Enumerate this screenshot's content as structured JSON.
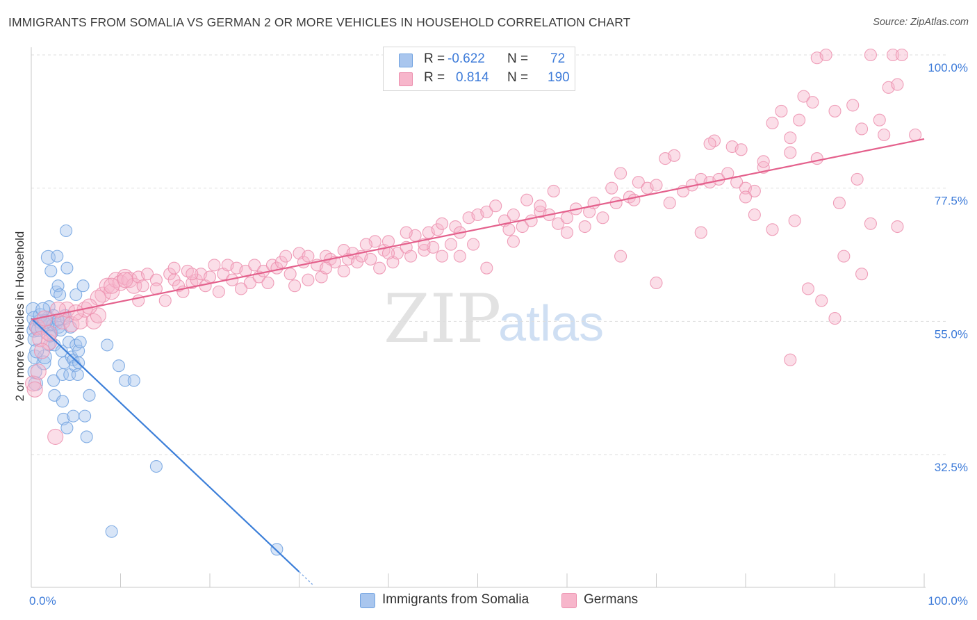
{
  "header": {
    "title": "IMMIGRANTS FROM SOMALIA VS GERMAN 2 OR MORE VEHICLES IN HOUSEHOLD CORRELATION CHART",
    "source": "Source: ZipAtlas.com"
  },
  "watermark": {
    "zip": "ZIP",
    "atlas": "atlas"
  },
  "legend": {
    "r_label": "R =",
    "n_label": "N =",
    "rows": [
      {
        "r": "-0.622",
        "n": "72",
        "color": "#a9c6ee"
      },
      {
        "r": "0.814",
        "n": "190",
        "color": "#f7b6cb"
      }
    ]
  },
  "chart_data": {
    "type": "scatter",
    "title": "IMMIGRANTS FROM SOMALIA VS GERMAN 2 OR MORE VEHICLES IN HOUSEHOLD CORRELATION CHART",
    "xlabel": "",
    "ylabel": "2 or more Vehicles in Household",
    "xlim": [
      0,
      100
    ],
    "ylim": [
      10,
      102
    ],
    "x_tick_labels": [
      "0.0%",
      "100.0%"
    ],
    "y_ticks": [
      32.5,
      55.0,
      77.5,
      100.0
    ],
    "y_tick_labels": [
      "32.5%",
      "55.0%",
      "77.5%",
      "100.0%"
    ],
    "grid": true,
    "legend_position": "bottom",
    "series": [
      {
        "name": "Immigrants from Somalia",
        "color": "#6fa1e0",
        "fill": "#a9c6ee",
        "line_color": "#3c7fd9",
        "trend": {
          "x0": 0,
          "y0": 55.5,
          "x1": 30,
          "y1": 12.7,
          "dash_to_x": 31.5
        },
        "points": [
          [
            0.2,
            57.0
          ],
          [
            0.3,
            55.5
          ],
          [
            0.3,
            53.5
          ],
          [
            0.4,
            52.0
          ],
          [
            0.4,
            49.0
          ],
          [
            0.4,
            46.5
          ],
          [
            0.5,
            44.5
          ],
          [
            0.5,
            54.2
          ],
          [
            0.8,
            53.6
          ],
          [
            1.0,
            55.0
          ],
          [
            1.2,
            54.0
          ],
          [
            1.4,
            48.0
          ],
          [
            1.5,
            49.0
          ],
          [
            1.8,
            54.3
          ],
          [
            1.9,
            55.5
          ],
          [
            1.9,
            65.8
          ],
          [
            2.0,
            57.5
          ],
          [
            2.0,
            51.0
          ],
          [
            2.2,
            63.5
          ],
          [
            2.3,
            53.0
          ],
          [
            2.4,
            54.5
          ],
          [
            2.5,
            45.0
          ],
          [
            2.5,
            56.0
          ],
          [
            2.6,
            51.0
          ],
          [
            2.6,
            42.5
          ],
          [
            2.8,
            60.0
          ],
          [
            2.8,
            54.5
          ],
          [
            2.9,
            66.0
          ],
          [
            3.0,
            61.0
          ],
          [
            3.1,
            54.0
          ],
          [
            3.2,
            59.5
          ],
          [
            3.3,
            53.5
          ],
          [
            3.4,
            50.0
          ],
          [
            3.5,
            41.5
          ],
          [
            3.5,
            46.0
          ],
          [
            3.6,
            38.5
          ],
          [
            3.7,
            48.0
          ],
          [
            3.8,
            56.0
          ],
          [
            3.9,
            70.3
          ],
          [
            3.9,
            55.5
          ],
          [
            4.0,
            64.0
          ],
          [
            4.0,
            37.0
          ],
          [
            4.2,
            51.5
          ],
          [
            4.3,
            46.0
          ],
          [
            4.4,
            54.0
          ],
          [
            4.5,
            49.0
          ],
          [
            4.7,
            39.0
          ],
          [
            4.7,
            48.5
          ],
          [
            4.9,
            47.5
          ],
          [
            5.0,
            59.5
          ],
          [
            5.0,
            51.0
          ],
          [
            5.3,
            50.0
          ],
          [
            5.5,
            51.5
          ],
          [
            5.3,
            48.0
          ],
          [
            5.2,
            46.0
          ],
          [
            5.8,
            61.0
          ],
          [
            6.0,
            39.0
          ],
          [
            6.2,
            35.5
          ],
          [
            6.5,
            42.5
          ],
          [
            8.5,
            51.0
          ],
          [
            9.0,
            19.5
          ],
          [
            9.8,
            47.5
          ],
          [
            10.5,
            45.0
          ],
          [
            11.5,
            45.0
          ],
          [
            14.0,
            30.5
          ],
          [
            27.5,
            16.5
          ],
          [
            1.0,
            56.0
          ],
          [
            1.6,
            55.0
          ],
          [
            2.1,
            52.5
          ],
          [
            3.0,
            55.2
          ],
          [
            0.6,
            50.0
          ],
          [
            1.3,
            57.0
          ]
        ]
      },
      {
        "name": "Germans",
        "color": "#ec8fae",
        "fill": "#f7b6cb",
        "line_color": "#e4608c",
        "trend": {
          "x0": 0,
          "y0": 55.3,
          "x1": 100,
          "y1": 85.8
        },
        "points": [
          [
            0.2,
            44.5
          ],
          [
            0.4,
            43.5
          ],
          [
            0.7,
            54.0
          ],
          [
            1.0,
            52.0
          ],
          [
            1.5,
            55.5
          ],
          [
            2.0,
            51.5
          ],
          [
            2.7,
            35.5
          ],
          [
            3.5,
            55.0
          ],
          [
            4.0,
            57.0
          ],
          [
            4.5,
            54.5
          ],
          [
            5.5,
            55.0
          ],
          [
            6.0,
            57.0
          ],
          [
            7.0,
            55.0
          ],
          [
            7.5,
            56.0
          ],
          [
            8.0,
            59.5
          ],
          [
            8.5,
            61.0
          ],
          [
            9.0,
            60.0
          ],
          [
            9.5,
            62.0
          ],
          [
            10.0,
            61.5
          ],
          [
            10.5,
            62.5
          ],
          [
            11.0,
            62.0
          ],
          [
            11.5,
            61.0
          ],
          [
            12.0,
            62.5
          ],
          [
            12.5,
            61.0
          ],
          [
            13.0,
            63.0
          ],
          [
            14.0,
            62.0
          ],
          [
            15.0,
            58.5
          ],
          [
            15.5,
            63.0
          ],
          [
            16.0,
            62.0
          ],
          [
            16.5,
            61.0
          ],
          [
            17.0,
            60.0
          ],
          [
            17.5,
            63.5
          ],
          [
            18.0,
            61.5
          ],
          [
            18.5,
            62.0
          ],
          [
            19.0,
            63.0
          ],
          [
            19.5,
            61.0
          ],
          [
            20.0,
            62.5
          ],
          [
            21.0,
            60.0
          ],
          [
            21.5,
            63.0
          ],
          [
            22.0,
            64.5
          ],
          [
            22.5,
            62.0
          ],
          [
            23.0,
            64.0
          ],
          [
            24.0,
            63.5
          ],
          [
            24.5,
            61.5
          ],
          [
            25.0,
            64.5
          ],
          [
            25.5,
            62.5
          ],
          [
            26.0,
            63.5
          ],
          [
            27.0,
            64.5
          ],
          [
            27.5,
            64.0
          ],
          [
            28.0,
            65.0
          ],
          [
            29.0,
            63.0
          ],
          [
            29.5,
            61.0
          ],
          [
            30.0,
            66.5
          ],
          [
            30.5,
            65.0
          ],
          [
            31.0,
            66.0
          ],
          [
            32.0,
            64.5
          ],
          [
            32.5,
            62.5
          ],
          [
            33.0,
            66.0
          ],
          [
            33.5,
            65.5
          ],
          [
            34.0,
            65.0
          ],
          [
            35.0,
            67.0
          ],
          [
            35.5,
            65.5
          ],
          [
            36.0,
            66.5
          ],
          [
            36.5,
            65.0
          ],
          [
            37.0,
            66.0
          ],
          [
            38.0,
            65.5
          ],
          [
            38.5,
            68.5
          ],
          [
            39.0,
            64.0
          ],
          [
            39.5,
            67.0
          ],
          [
            40.0,
            68.5
          ],
          [
            40.5,
            65.0
          ],
          [
            41.0,
            66.5
          ],
          [
            42.0,
            67.5
          ],
          [
            42.5,
            66.0
          ],
          [
            43.0,
            69.5
          ],
          [
            44.0,
            67.0
          ],
          [
            44.5,
            70.0
          ],
          [
            45.0,
            67.5
          ],
          [
            45.5,
            70.5
          ],
          [
            46.0,
            66.0
          ],
          [
            47.0,
            68.0
          ],
          [
            47.5,
            71.0
          ],
          [
            48.0,
            70.0
          ],
          [
            49.0,
            72.5
          ],
          [
            49.5,
            68.0
          ],
          [
            50.0,
            73.0
          ],
          [
            51.0,
            73.5
          ],
          [
            52.0,
            74.5
          ],
          [
            53.0,
            72.0
          ],
          [
            53.5,
            70.5
          ],
          [
            54.0,
            73.0
          ],
          [
            55.0,
            71.0
          ],
          [
            55.5,
            75.5
          ],
          [
            56.0,
            72.0
          ],
          [
            57.0,
            73.5
          ],
          [
            58.0,
            73.0
          ],
          [
            58.5,
            77.0
          ],
          [
            59.0,
            71.5
          ],
          [
            60.0,
            72.5
          ],
          [
            61.0,
            74.0
          ],
          [
            62.0,
            71.0
          ],
          [
            62.5,
            73.5
          ],
          [
            63.0,
            75.0
          ],
          [
            64.0,
            72.5
          ],
          [
            65.0,
            77.5
          ],
          [
            65.5,
            75.0
          ],
          [
            66.0,
            80.0
          ],
          [
            67.0,
            76.0
          ],
          [
            67.5,
            75.5
          ],
          [
            68.0,
            78.5
          ],
          [
            69.0,
            77.5
          ],
          [
            70.0,
            78.0
          ],
          [
            71.0,
            82.5
          ],
          [
            71.5,
            75.0
          ],
          [
            72.0,
            83.0
          ],
          [
            73.0,
            77.0
          ],
          [
            74.0,
            78.0
          ],
          [
            75.0,
            79.0
          ],
          [
            76.0,
            78.5
          ],
          [
            76.5,
            85.5
          ],
          [
            77.0,
            79.0
          ],
          [
            78.0,
            80.0
          ],
          [
            78.5,
            84.5
          ],
          [
            79.0,
            78.5
          ],
          [
            80.0,
            77.5
          ],
          [
            81.0,
            77.0
          ],
          [
            82.0,
            81.0
          ],
          [
            83.0,
            88.5
          ],
          [
            84.0,
            90.5
          ],
          [
            85.0,
            86.0
          ],
          [
            86.0,
            89.0
          ],
          [
            86.5,
            93.0
          ],
          [
            87.5,
            92.0
          ],
          [
            88.0,
            99.5
          ],
          [
            89.0,
            100.0
          ],
          [
            90.0,
            90.5
          ],
          [
            92.0,
            91.5
          ],
          [
            93.0,
            87.5
          ],
          [
            94.0,
            100.0
          ],
          [
            95.0,
            89.0
          ],
          [
            96.0,
            94.5
          ],
          [
            96.5,
            100.0
          ],
          [
            97.0,
            95.0
          ],
          [
            97.5,
            100.0
          ],
          [
            99.0,
            86.5
          ],
          [
            92.5,
            79.0
          ],
          [
            90.0,
            55.5
          ],
          [
            85.0,
            48.5
          ],
          [
            93.0,
            63.0
          ],
          [
            91.0,
            66.0
          ],
          [
            88.5,
            58.5
          ],
          [
            87.0,
            60.5
          ],
          [
            83.0,
            70.5
          ],
          [
            81.0,
            73.0
          ],
          [
            85.5,
            72.0
          ],
          [
            90.5,
            75.0
          ],
          [
            94.0,
            71.5
          ],
          [
            97.0,
            71.0
          ],
          [
            80.0,
            76.0
          ],
          [
            75.0,
            70.0
          ],
          [
            70.0,
            61.5
          ],
          [
            66.0,
            66.0
          ],
          [
            60.0,
            70.0
          ],
          [
            57.0,
            74.5
          ],
          [
            54.0,
            68.5
          ],
          [
            51.0,
            64.0
          ],
          [
            48.0,
            66.0
          ],
          [
            46.0,
            71.5
          ],
          [
            44.0,
            68.0
          ],
          [
            42.0,
            70.0
          ],
          [
            40.0,
            66.5
          ],
          [
            37.5,
            68.0
          ],
          [
            35.0,
            63.5
          ],
          [
            33.0,
            64.0
          ],
          [
            31.0,
            62.0
          ],
          [
            28.5,
            66.0
          ],
          [
            26.5,
            61.5
          ],
          [
            23.5,
            60.5
          ],
          [
            20.5,
            64.5
          ],
          [
            18.0,
            63.0
          ],
          [
            16.0,
            64.0
          ],
          [
            14.0,
            60.5
          ],
          [
            12.0,
            58.5
          ],
          [
            10.5,
            62.0
          ],
          [
            9.0,
            61.0
          ],
          [
            7.5,
            59.0
          ],
          [
            6.5,
            57.5
          ],
          [
            5.0,
            56.5
          ],
          [
            3.0,
            57.0
          ],
          [
            2.0,
            53.0
          ],
          [
            1.2,
            50.0
          ],
          [
            0.8,
            46.5
          ],
          [
            76.0,
            85.0
          ],
          [
            79.5,
            84.0
          ],
          [
            82.0,
            82.0
          ],
          [
            85.0,
            83.5
          ],
          [
            88.0,
            82.5
          ],
          [
            95.5,
            86.5
          ]
        ]
      }
    ]
  },
  "bottom_legend": [
    {
      "label": "Immigrants from Somalia"
    },
    {
      "label": "Germans"
    }
  ]
}
